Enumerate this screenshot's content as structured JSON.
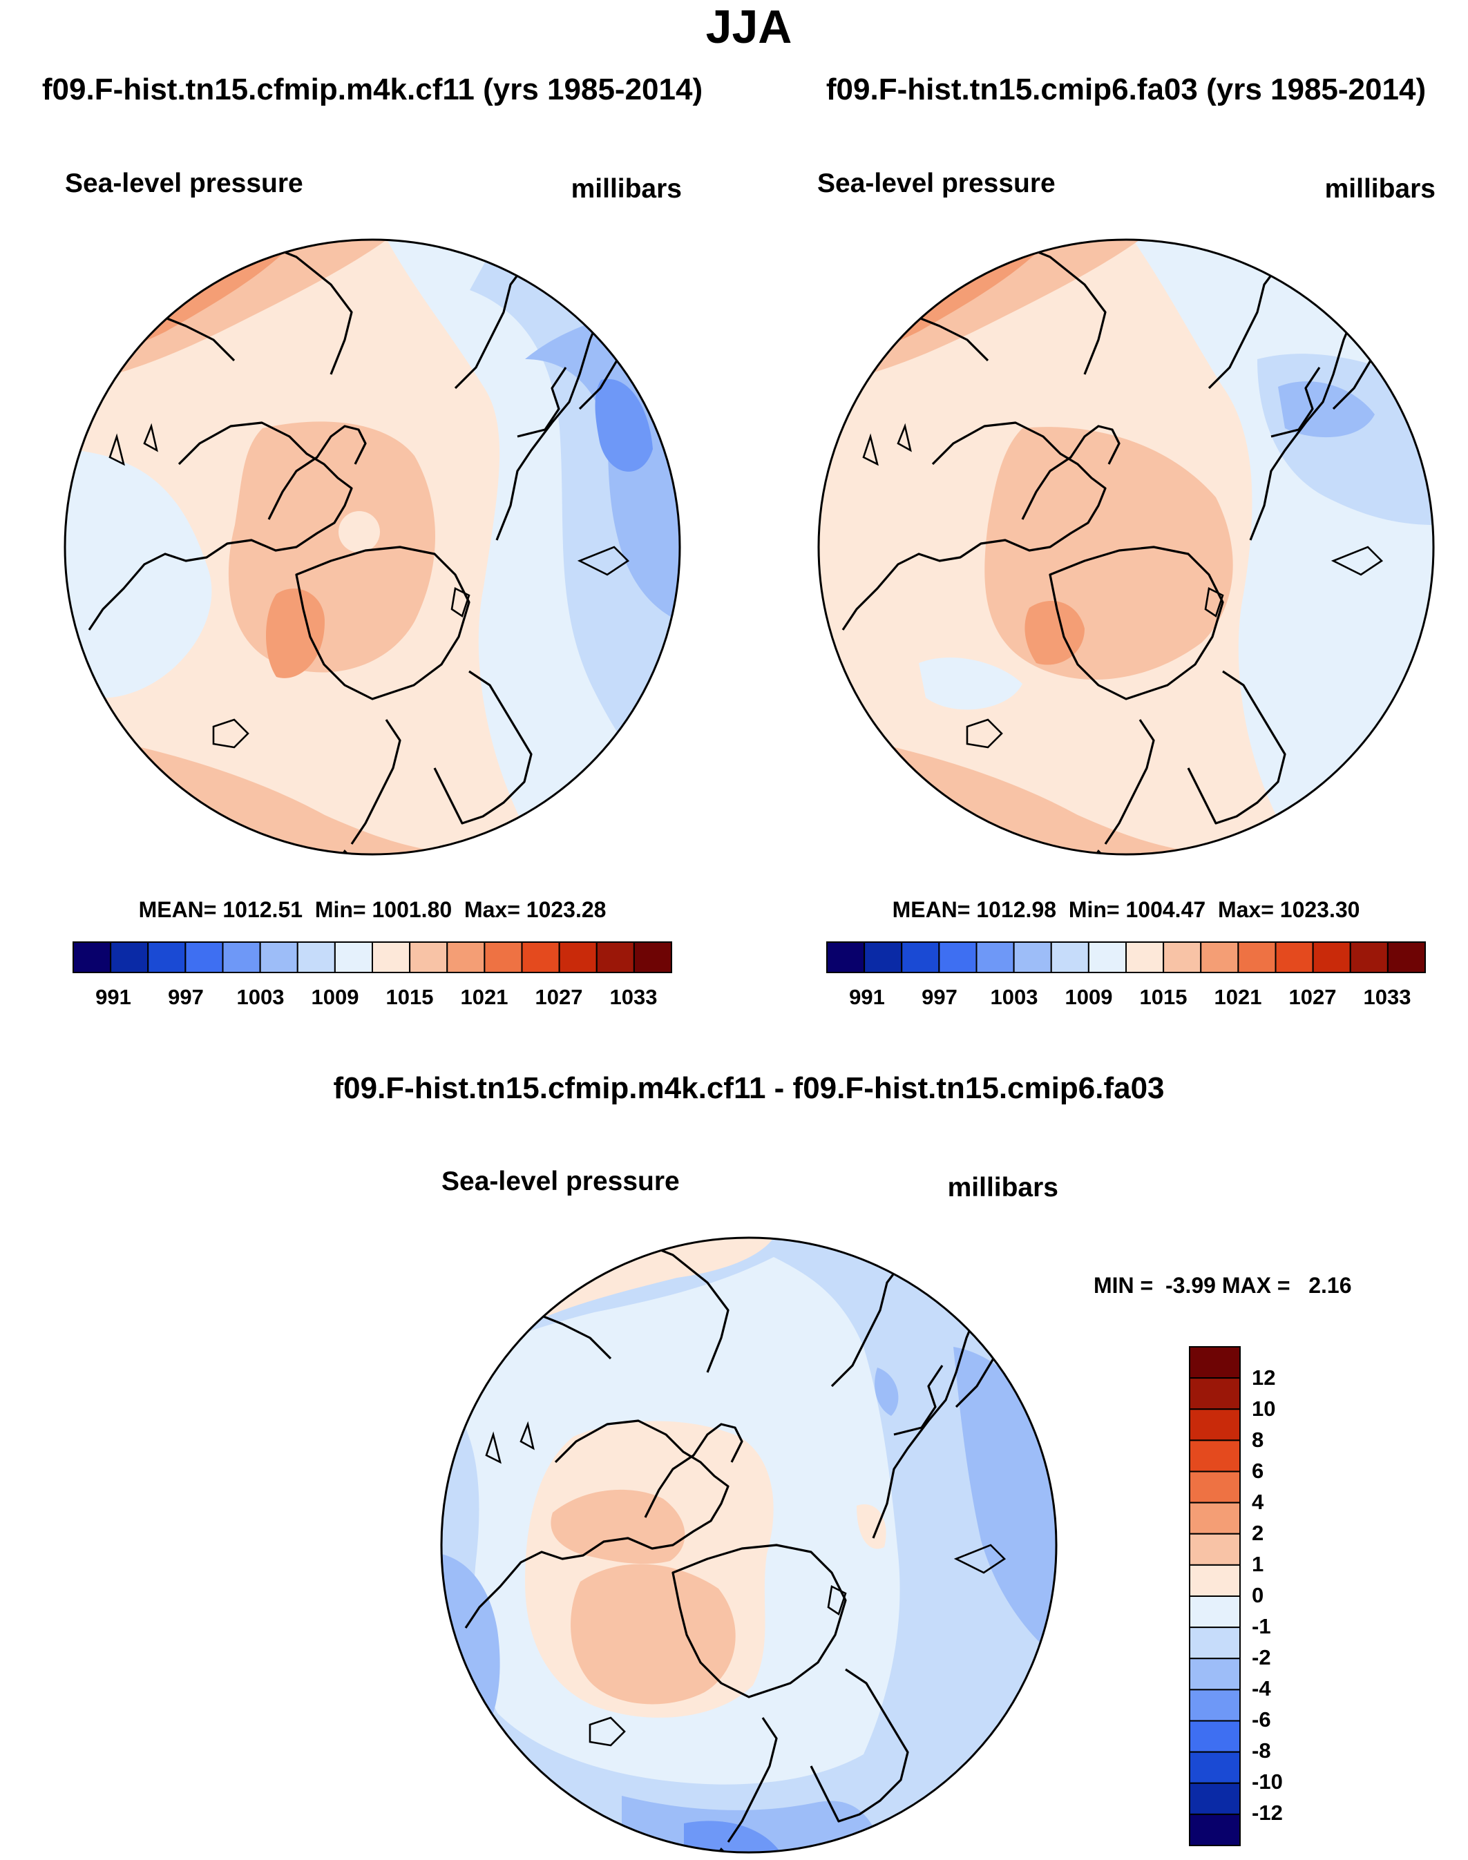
{
  "season": "JJA",
  "colors": {
    "abs": [
      "#08006b",
      "#0a2aa6",
      "#1a4ad4",
      "#3e6ff2",
      "#6e98f7",
      "#9dbdf8",
      "#c6dcfa",
      "#e5f1fc",
      "#fde8d9",
      "#f8c3a6",
      "#f49e75",
      "#ee7243",
      "#e44a1e",
      "#c92a0a",
      "#9b1708",
      "#6e0404"
    ],
    "diff": [
      "#08006b",
      "#0a2aa6",
      "#1a4ad4",
      "#3e6ff2",
      "#6e98f7",
      "#9dbdf8",
      "#c6dcfa",
      "#e5f1fc",
      "#fde8d9",
      "#f8c3a6",
      "#f49e75",
      "#ee7243",
      "#e44a1e",
      "#c92a0a",
      "#9b1708",
      "#6e0404"
    ]
  },
  "chart_data": [
    {
      "type": "heatmap",
      "projection": "north-polar-stereographic",
      "run_title": "f09.F-hist.tn15.cfmip.m4k.cf11 (yrs 1985-2014)",
      "variable": "Sea-level pressure",
      "units": "millibars",
      "stats": {
        "label": "MEAN= 1012.51  Min= 1001.80  Max= 1023.28",
        "mean": 1012.51,
        "min": 1001.8,
        "max": 1023.28
      },
      "colorbar": {
        "ticks": [
          "991",
          "997",
          "1003",
          "1009",
          "1015",
          "1021",
          "1027",
          "1033"
        ],
        "levels": 15
      },
      "regions": {
        "pacific_high": 1025,
        "atlantic_high": 1019,
        "arctic_basin": 1017,
        "greenland": 1019,
        "siberia": 1009,
        "east_asia_low": 1003,
        "north_america": 1013
      }
    },
    {
      "type": "heatmap",
      "projection": "north-polar-stereographic",
      "run_title": "f09.F-hist.tn15.cmip6.fa03 (yrs 1985-2014)",
      "variable": "Sea-level pressure",
      "units": "millibars",
      "stats": {
        "label": "MEAN= 1012.98  Min= 1004.47  Max= 1023.30",
        "mean": 1012.98,
        "min": 1004.47,
        "max": 1023.3
      },
      "colorbar": {
        "ticks": [
          "991",
          "997",
          "1003",
          "1009",
          "1015",
          "1021",
          "1027",
          "1033"
        ],
        "levels": 15
      },
      "regions": {
        "pacific_high": 1025,
        "atlantic_high": 1019,
        "arctic_basin": 1016,
        "greenland": 1018,
        "siberia": 1011,
        "east_asia_low": 1006,
        "north_america": 1015
      }
    },
    {
      "type": "heatmap",
      "projection": "north-polar-stereographic",
      "run_title": "f09.F-hist.tn15.cfmip.m4k.cf11 - f09.F-hist.tn15.cmip6.fa03",
      "variable": "Sea-level pressure",
      "units": "millibars",
      "stats": {
        "label": "MIN =  -3.99 MAX =   2.16",
        "min": -3.99,
        "max": 2.16
      },
      "colorbar": {
        "ticks": [
          "12",
          "10",
          "8",
          "6",
          "4",
          "2",
          "1",
          "0",
          "-1",
          "-2",
          "-4",
          "-6",
          "-8",
          "-10",
          "-12"
        ],
        "levels": 16
      },
      "regions": {
        "arctic_basin": 0.5,
        "greenland": 1.5,
        "canadian_archipelago": 1.5,
        "north_pacific": -1.5,
        "siberia": -1.5,
        "east_asia": -2.5,
        "north_america": -2.5
      }
    }
  ]
}
